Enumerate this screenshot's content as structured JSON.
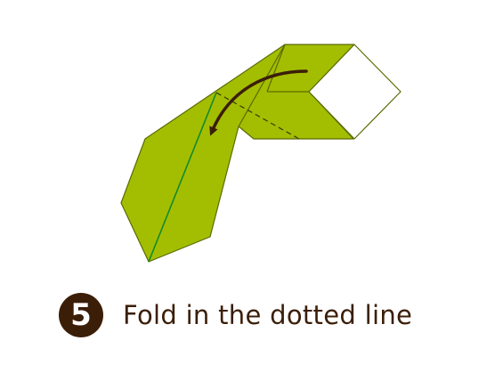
{
  "step": {
    "number": "5",
    "instruction": "Fold in the dotted line"
  },
  "colors": {
    "paper_green": "#a3be00",
    "crease_green": "#118a2e",
    "outline": "#5a6a00",
    "text_brown": "#3b1e08",
    "paper_white": "#ffffff"
  },
  "icons": {
    "fold_arrow": "curved-arrow-icon"
  }
}
